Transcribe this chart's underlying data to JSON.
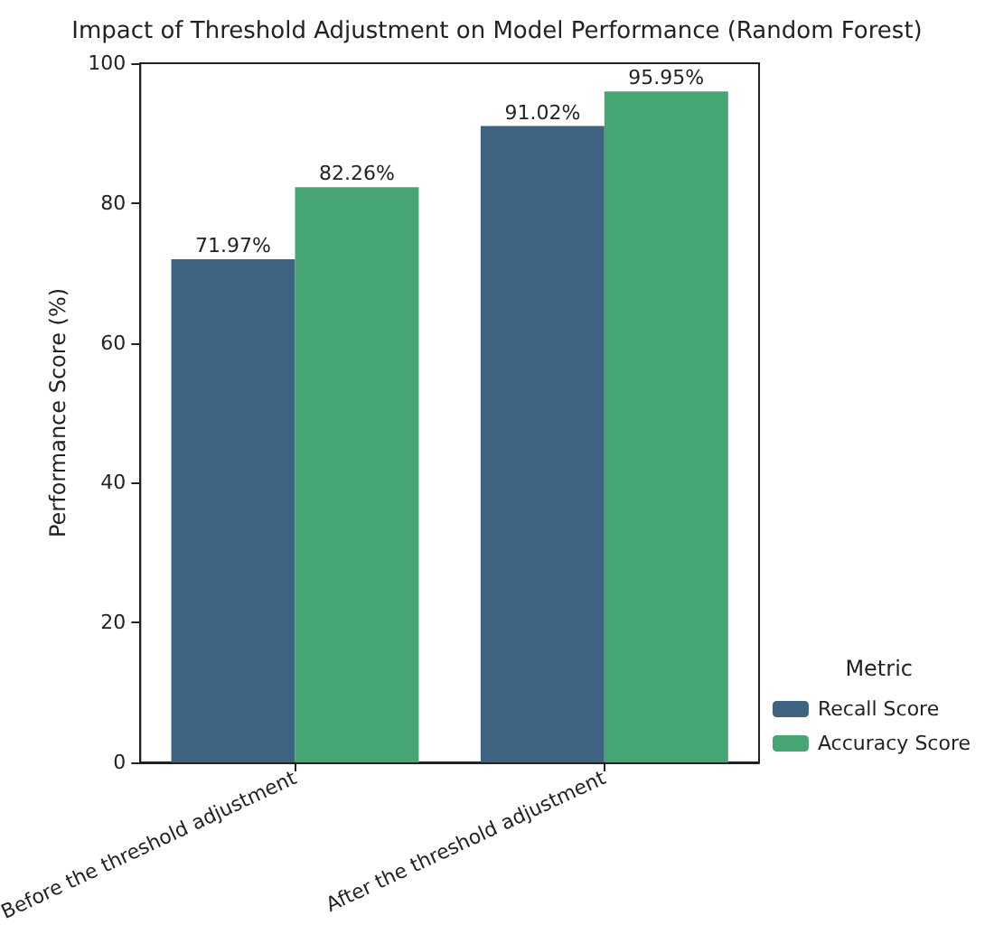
{
  "chart_data": {
    "type": "bar",
    "title": "Impact of Threshold Adjustment on Model Performance (Random Forest)",
    "ylabel": "Performance Score (%)",
    "legend_title": "Metric",
    "legend": "bottom right",
    "categories": [
      "Before the threshold adjustment",
      "After the threshold adjustment"
    ],
    "series": [
      {
        "name": "Recall Score",
        "color": "#3e6482",
        "values": [
          71.97,
          91.02
        ],
        "value_labels": [
          "71.97%",
          "91.02%"
        ]
      },
      {
        "name": "Accuracy Score",
        "color": "#45a674",
        "values": [
          82.26,
          95.95
        ],
        "value_labels": [
          "82.26%",
          "95.95%"
        ]
      }
    ],
    "ylim": [
      0,
      100
    ],
    "yticks": [
      0,
      20,
      40,
      60,
      80,
      100
    ]
  }
}
